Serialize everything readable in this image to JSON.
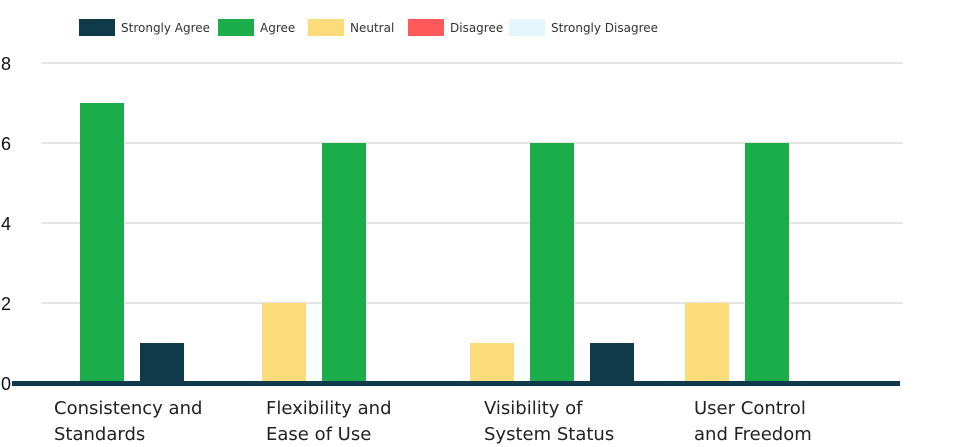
{
  "chart_data": {
    "type": "bar",
    "title": "",
    "xlabel": "",
    "ylabel": "",
    "ylim": [
      0,
      8
    ],
    "yticks": [
      "0",
      "2",
      "4",
      "6",
      "8"
    ],
    "grid": true,
    "legend_position": "top-left",
    "categories": [
      [
        "Consistency and",
        "Standards"
      ],
      [
        "Flexibility and",
        "Ease of Use"
      ],
      [
        "Visibility of",
        "System Status"
      ],
      [
        "User Control",
        "and Freedom"
      ]
    ],
    "series": [
      {
        "name": "Strongly Agree",
        "color": "#0f3a4a",
        "values": [
          1,
          0,
          1,
          0
        ]
      },
      {
        "name": "Agree",
        "color": "#1aad4a",
        "values": [
          7,
          6,
          6,
          6
        ]
      },
      {
        "name": "Neutral",
        "color": "#fcdc7a",
        "values": [
          0,
          2,
          1,
          2
        ]
      },
      {
        "name": "Disagree",
        "color": "#ff5a5a",
        "values": [
          0,
          0,
          0,
          0
        ]
      },
      {
        "name": "Strongly Disagree",
        "color": "#e4f5fb",
        "values": [
          0,
          0,
          0,
          0
        ]
      }
    ]
  }
}
